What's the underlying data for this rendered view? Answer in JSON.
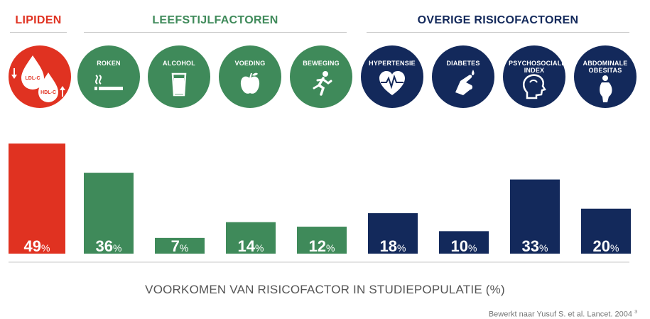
{
  "groups": {
    "lipids": "LIPIDEN",
    "lifestyle": "LEEFSTIJLFACTOREN",
    "other": "OVERIGE RISICOFACTOREN"
  },
  "icons": [
    {
      "label": "",
      "icon": "blood-drops-icon",
      "drop1": "LDL-C",
      "drop2": "HDL-C"
    },
    {
      "label": "ROKEN",
      "icon": "cigarette-icon"
    },
    {
      "label": "ALCOHOL",
      "icon": "beer-glass-icon"
    },
    {
      "label": "VOEDING",
      "icon": "apple-icon"
    },
    {
      "label": "BEWEGING",
      "icon": "running-person-icon"
    },
    {
      "label": "HYPERTENSIE",
      "icon": "heart-pulse-icon"
    },
    {
      "label": "DIABETES",
      "icon": "finger-prick-icon"
    },
    {
      "label": "PSYCHOSOCIALE INDEX",
      "icon": "head-profile-icon"
    },
    {
      "label": "ABDOMINALE OBESITAS",
      "icon": "obese-body-icon"
    }
  ],
  "colors": {
    "lipids": "#e03221",
    "lifestyle": "#3f8a5a",
    "other": "#13295b"
  },
  "chart_data": {
    "type": "bar",
    "categories": [
      "LIPIDEN",
      "ROKEN",
      "ALCOHOL",
      "VOEDING",
      "BEWEGING",
      "HYPERTENSIE",
      "DIABETES",
      "PSYCHOSOCIALE INDEX",
      "ABDOMINALE OBESITAS"
    ],
    "values": [
      49,
      36,
      7,
      14,
      12,
      18,
      10,
      33,
      20
    ],
    "value_unit": "%",
    "groups": [
      "lipids",
      "lifestyle",
      "lifestyle",
      "lifestyle",
      "lifestyle",
      "other",
      "other",
      "other",
      "other"
    ],
    "xlabel": "VOORKOMEN VAN RISICOFACTOR IN STUDIEPOPULATIE (%)",
    "ylim": [
      0,
      49
    ],
    "grid": false,
    "legend": "none"
  },
  "source": "Bewerkt naar Yusuf S. et al. Lancet. 2004",
  "source_ref": "3"
}
